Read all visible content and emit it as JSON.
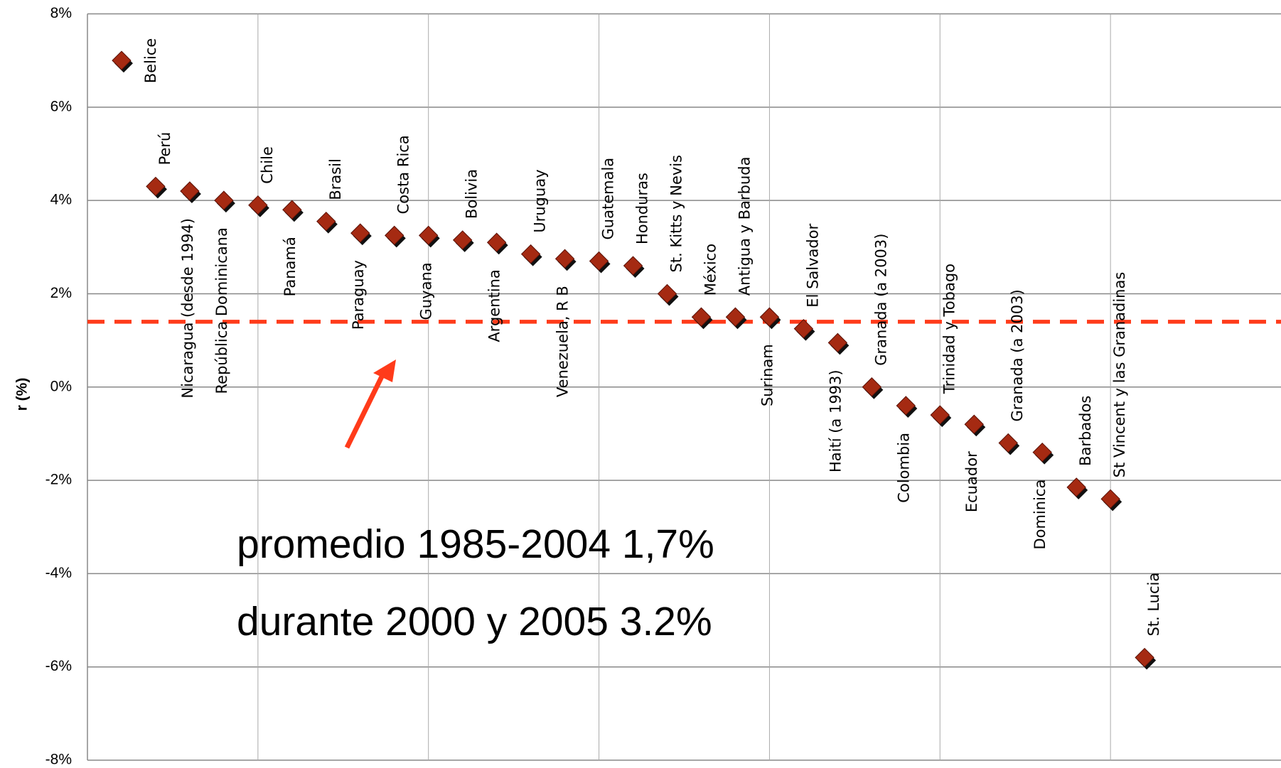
{
  "chart_data": {
    "type": "scatter",
    "y_label": "r (%)",
    "x": [
      1,
      2,
      3,
      4,
      5,
      6,
      7,
      8,
      9,
      10,
      11,
      12,
      13,
      14,
      15,
      16,
      17,
      18,
      19,
      20,
      21,
      22,
      23,
      24,
      25,
      26,
      27,
      28,
      29,
      30,
      31
    ],
    "labels": [
      "Belice",
      "Perú",
      "Nicaragua (desde 1994)",
      "República Dominicana",
      "Chile",
      "Panamá",
      "Brasil",
      "Paraguay",
      "Costa Rica",
      "Guyana",
      "Bolivia",
      "Argentina",
      "Uruguay",
      "Venezuela, R B",
      "Guatemala",
      "Honduras",
      "St. Kitts y Nevis",
      "México",
      "Antigua y Barbuda",
      "Surinam",
      "El Salvador",
      "Haití (a 1993)",
      "Granada (a 2003)",
      "Colombia",
      "Trinidad y Tobago",
      "Ecuador",
      "Granada (a 2003)",
      "Dominica",
      "Barbados",
      "St Vincent y las Granadinas",
      "St. Lucia"
    ],
    "values": [
      7.0,
      4.3,
      4.2,
      4.0,
      3.9,
      3.8,
      3.55,
      3.3,
      3.25,
      3.25,
      3.15,
      3.1,
      2.85,
      2.75,
      2.7,
      2.6,
      2.0,
      1.5,
      1.5,
      1.5,
      1.25,
      0.95,
      0.0,
      -0.4,
      -0.6,
      -0.8,
      -1.2,
      -1.4,
      -2.15,
      -2.4,
      -5.8
    ],
    "color": "#a52a12",
    "reference_line": 1.4,
    "reference_color": "#ff3b1a",
    "xlim": [
      0,
      35
    ],
    "xticks": [
      5,
      10,
      15,
      20,
      25,
      30
    ],
    "ylim": [
      -8,
      8
    ],
    "yticks": [
      {
        "value": -8,
        "label": "-8%"
      },
      {
        "value": -6,
        "label": "-6%"
      },
      {
        "value": -4,
        "label": "-4%"
      },
      {
        "value": -2,
        "label": "-2%"
      },
      {
        "value": 0,
        "label": "0%"
      },
      {
        "value": 2,
        "label": "2%"
      },
      {
        "value": 4,
        "label": "4%"
      },
      {
        "value": 6,
        "label": "6%"
      },
      {
        "value": 8,
        "label": "8%"
      }
    ],
    "grid": true,
    "annotations": [
      "promedio 1985-2004 1,7%",
      "durante 2000 y 2005 3.2%"
    ]
  }
}
